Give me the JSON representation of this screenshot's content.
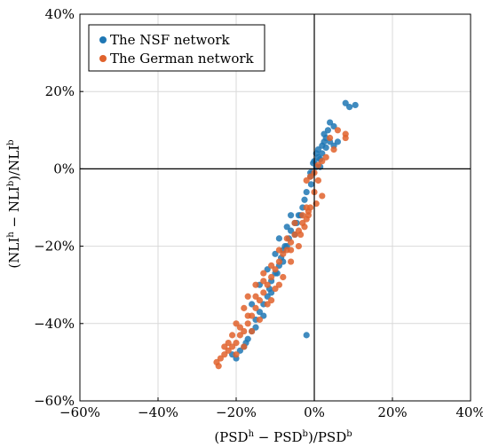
{
  "chart_data": {
    "type": "scatter",
    "xlim": [
      -60,
      40
    ],
    "ylim": [
      -60,
      40
    ],
    "x_ticks": [
      "−60%",
      "−40%",
      "−20%",
      "0%",
      "20%",
      "40%"
    ],
    "y_ticks": [
      "−60%",
      "−40%",
      "−20%",
      "0%",
      "20%",
      "40%"
    ],
    "x_tick_values": [
      -60,
      -40,
      -20,
      0,
      20,
      40
    ],
    "y_tick_values": [
      -60,
      -40,
      -20,
      0,
      20,
      40
    ],
    "xlabel": "(PSD^h − PSD^b)/PSD^b",
    "ylabel": "(NLI^h − NLI^b)/NLI^b",
    "grid": true,
    "legend": "top-left",
    "reference_lines": {
      "x": 0,
      "y": 0
    },
    "series": [
      {
        "name": "The NSF network",
        "color": "#1f77b4",
        "points": [
          [
            8,
            17
          ],
          [
            9,
            16
          ],
          [
            10.5,
            16.5
          ],
          [
            4,
            12
          ],
          [
            3.5,
            10
          ],
          [
            5,
            11
          ],
          [
            2.5,
            9
          ],
          [
            3,
            8
          ],
          [
            4,
            7
          ],
          [
            5,
            6
          ],
          [
            2,
            6
          ],
          [
            1,
            5
          ],
          [
            3,
            5.5
          ],
          [
            2,
            4
          ],
          [
            1,
            3
          ],
          [
            0,
            2
          ],
          [
            1.5,
            2.5
          ],
          [
            0.5,
            0.5
          ],
          [
            -0.5,
            -1
          ],
          [
            -1,
            -2
          ],
          [
            -0.8,
            -4
          ],
          [
            -2,
            -6
          ],
          [
            -2.5,
            -8
          ],
          [
            -3,
            -10
          ],
          [
            -4,
            -12
          ],
          [
            -5,
            -14
          ],
          [
            -6,
            -16
          ],
          [
            -6.5,
            -18
          ],
          [
            -7,
            -20
          ],
          [
            -8,
            -21
          ],
          [
            -8.5,
            -23
          ],
          [
            -9,
            -25
          ],
          [
            -10,
            -27
          ],
          [
            -11,
            -29
          ],
          [
            -11.5,
            -31
          ],
          [
            -12,
            -33
          ],
          [
            -13,
            -35
          ],
          [
            -14,
            -37
          ],
          [
            -15,
            -39
          ],
          [
            -16,
            -42
          ],
          [
            -17,
            -44
          ],
          [
            -18,
            -46
          ],
          [
            -19,
            -47
          ],
          [
            -20,
            -49
          ],
          [
            -21,
            -48
          ],
          [
            -6,
            -12
          ],
          [
            -7,
            -15
          ],
          [
            -9,
            -18
          ],
          [
            -10,
            -22
          ],
          [
            -12,
            -26
          ],
          [
            -14,
            -30
          ],
          [
            -16,
            -35
          ],
          [
            -3.5,
            -12
          ],
          [
            -5,
            -17
          ],
          [
            -8,
            -24
          ],
          [
            -11,
            -32
          ],
          [
            -13,
            -38
          ],
          [
            -2,
            -43
          ],
          [
            -1,
            -1
          ],
          [
            0.5,
            4
          ],
          [
            2.5,
            7
          ],
          [
            6,
            7
          ],
          [
            -4.5,
            -14
          ],
          [
            -7.5,
            -20
          ],
          [
            -9.5,
            -27
          ],
          [
            -15,
            -41
          ],
          [
            -17.5,
            -45
          ],
          [
            1.5,
            0.5
          ],
          [
            -0.3,
            1.5
          ]
        ]
      },
      {
        "name": "The German network",
        "color": "#e0622c",
        "points": [
          [
            8,
            9
          ],
          [
            8,
            8
          ],
          [
            6,
            10
          ],
          [
            4,
            8
          ],
          [
            5,
            5
          ],
          [
            3,
            3
          ],
          [
            2,
            2
          ],
          [
            1,
            1
          ],
          [
            0,
            -1
          ],
          [
            -1,
            -2
          ],
          [
            -2,
            -3
          ],
          [
            1,
            -3
          ],
          [
            2,
            -7
          ],
          [
            0.5,
            -9
          ],
          [
            -1,
            -10
          ],
          [
            -1.5,
            -12
          ],
          [
            -2,
            -13
          ],
          [
            -3,
            -14
          ],
          [
            -4,
            -16
          ],
          [
            -5,
            -17
          ],
          [
            -6,
            -19
          ],
          [
            -7,
            -21
          ],
          [
            -8,
            -22
          ],
          [
            -9,
            -24
          ],
          [
            -10,
            -26
          ],
          [
            -11,
            -28
          ],
          [
            -12,
            -30
          ],
          [
            -13,
            -32
          ],
          [
            -14,
            -34
          ],
          [
            -15,
            -36
          ],
          [
            -16,
            -38
          ],
          [
            -17,
            -40
          ],
          [
            -18,
            -42
          ],
          [
            -19,
            -43
          ],
          [
            -20,
            -45
          ],
          [
            -21,
            -46
          ],
          [
            -22,
            -47
          ],
          [
            -23,
            -48
          ],
          [
            -24,
            -49
          ],
          [
            -24.5,
            -51
          ],
          [
            -25,
            -50
          ],
          [
            -23,
            -46
          ],
          [
            -19,
            -41
          ],
          [
            -17,
            -38
          ],
          [
            -15,
            -33
          ],
          [
            -13,
            -29
          ],
          [
            -11,
            -25
          ],
          [
            -9,
            -21
          ],
          [
            -7,
            -18
          ],
          [
            -5,
            -14
          ],
          [
            -3,
            -12
          ],
          [
            -2,
            -10
          ],
          [
            -6,
            -24
          ],
          [
            -8,
            -28
          ],
          [
            -10,
            -31
          ],
          [
            -12,
            -35
          ],
          [
            -14,
            -39
          ],
          [
            -16,
            -42
          ],
          [
            -18,
            -36
          ],
          [
            -20,
            -40
          ],
          [
            -4,
            -20
          ],
          [
            -6,
            -21
          ],
          [
            -13,
            -27
          ],
          [
            -15,
            -30
          ],
          [
            -17,
            -33
          ],
          [
            -21,
            -43
          ],
          [
            -22,
            -45
          ],
          [
            -11,
            -34
          ],
          [
            -9,
            -30
          ],
          [
            -3.5,
            -17
          ],
          [
            -2.5,
            -15
          ],
          [
            -1.5,
            -11
          ],
          [
            0,
            -6
          ],
          [
            -20,
            -48
          ],
          [
            -18,
            -46
          ]
        ]
      }
    ]
  }
}
